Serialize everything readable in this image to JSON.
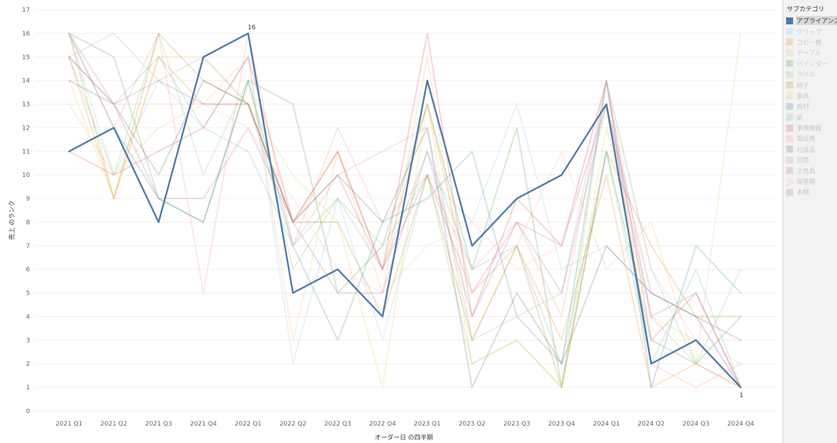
{
  "chart_data": {
    "type": "line",
    "xlabel": "オーダー日 の四半期",
    "ylabel": "売上 のランク",
    "ylim": [
      0,
      17
    ],
    "grid": true,
    "categories": [
      "2021 Q1",
      "2021 Q2",
      "2021 Q3",
      "2021 Q4",
      "2022 Q1",
      "2022 Q2",
      "2022 Q3",
      "2022 Q4",
      "2023 Q1",
      "2023 Q2",
      "2023 Q3",
      "2023 Q4",
      "2024 Q1",
      "2024 Q2",
      "2024 Q3",
      "2024 Q4"
    ],
    "highlighted_series": "アプライアンス",
    "point_labels": [
      {
        "series": "アプライアンス",
        "category": "2022 Q1",
        "text": "16"
      },
      {
        "series": "アプライアンス",
        "category": "2024 Q4",
        "text": "1"
      }
    ],
    "series": [
      {
        "name": "アプライアンス",
        "color": "#4e79a7",
        "values": [
          11,
          12,
          8,
          15,
          16,
          5,
          6,
          4,
          14,
          7,
          9,
          10,
          13,
          2,
          3,
          1
        ]
      },
      {
        "name": "クリップ",
        "color": "#a0cbe8",
        "values": [
          16,
          10,
          14,
          12,
          15,
          2,
          9,
          3,
          10,
          8,
          13,
          6,
          7,
          5,
          4,
          1
        ]
      },
      {
        "name": "コピー機",
        "color": "#f28e2b",
        "values": [
          15,
          9,
          15,
          13,
          13,
          8,
          11,
          6,
          13,
          5,
          7,
          3,
          10,
          1,
          2,
          1
        ]
      },
      {
        "name": "テーブル",
        "color": "#ffbe7d",
        "values": [
          13,
          10,
          12,
          13,
          15,
          3,
          11,
          5,
          15,
          3,
          7,
          11,
          6,
          8,
          2,
          16
        ]
      },
      {
        "name": "バインダー",
        "color": "#59a14f",
        "values": [
          16,
          15,
          9,
          8,
          14,
          13,
          5,
          7,
          13,
          6,
          12,
          1,
          11,
          3,
          2,
          4
        ]
      },
      {
        "name": "ラベル",
        "color": "#8cd17d",
        "values": [
          15,
          10,
          16,
          10,
          14,
          6,
          9,
          7,
          10,
          2,
          3,
          1,
          14,
          6,
          2,
          6
        ]
      },
      {
        "name": "椅子",
        "color": "#b6992d",
        "values": [
          16,
          9,
          16,
          14,
          13,
          8,
          8,
          4,
          10,
          3,
          7,
          1,
          11,
          7,
          4,
          4
        ]
      },
      {
        "name": "家具",
        "color": "#f1ce63",
        "values": [
          14,
          9,
          15,
          15,
          13,
          10,
          8,
          1,
          13,
          2,
          3,
          1,
          12,
          4,
          3,
          1
        ]
      },
      {
        "name": "画材",
        "color": "#499894",
        "values": [
          16,
          12,
          9,
          8,
          14,
          7,
          3,
          8,
          9,
          11,
          4,
          2,
          14,
          1,
          7,
          5
        ]
      },
      {
        "name": "紙",
        "color": "#86bcb6",
        "values": [
          16,
          13,
          15,
          12,
          11,
          7,
          9,
          6,
          11,
          6,
          7,
          2,
          11,
          2,
          6,
          1
        ]
      },
      {
        "name": "事務機器",
        "color": "#e15759",
        "values": [
          11,
          10,
          11,
          12,
          15,
          8,
          11,
          6,
          16,
          4,
          9,
          7,
          14,
          3,
          5,
          1
        ]
      },
      {
        "name": "電話機",
        "color": "#ff9d9a",
        "values": [
          16,
          12,
          16,
          5,
          16,
          7,
          12,
          8,
          10,
          6,
          8,
          4,
          14,
          2,
          1,
          2
        ]
      },
      {
        "name": "付属品",
        "color": "#79706e",
        "values": [
          14,
          13,
          10,
          14,
          13,
          8,
          10,
          8,
          12,
          1,
          5,
          2,
          7,
          5,
          4,
          3
        ]
      },
      {
        "name": "封筒",
        "color": "#bab0ac",
        "values": [
          15,
          16,
          14,
          15,
          13,
          7,
          10,
          11,
          12,
          3,
          4,
          5,
          14,
          4,
          2,
          1
        ]
      },
      {
        "name": "文房具",
        "color": "#d37295",
        "values": [
          15,
          13,
          9,
          9,
          12,
          8,
          10,
          6,
          10,
          5,
          8,
          7,
          13,
          5,
          4,
          1
        ]
      },
      {
        "name": "保管箱",
        "color": "#fabfd2",
        "values": [
          16,
          13,
          13,
          13,
          12,
          9,
          6,
          5,
          7,
          8,
          6,
          7,
          14,
          6,
          3,
          2
        ]
      },
      {
        "name": "本棚",
        "color": "#b07aa1",
        "values": [
          15,
          13,
          14,
          13,
          13,
          8,
          5,
          5,
          11,
          4,
          8,
          5,
          13,
          4,
          5,
          1
        ]
      }
    ]
  },
  "legend": {
    "title": "サブカテゴリ"
  }
}
